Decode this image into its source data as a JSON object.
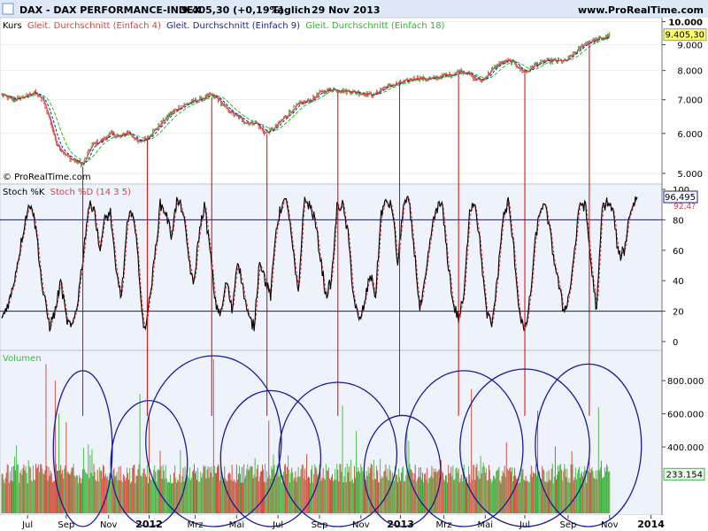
{
  "header": {
    "instrument": "DAX - DAX PERFORMANCE-INDEX",
    "last": "9.405,30 (+0,19%)",
    "period": "Täglich",
    "date": "29 Nov 2013",
    "site": "www.ProRealTime.com"
  },
  "watermark": "© ProRealTime.com",
  "colors": {
    "price": "#000000",
    "ma4": "#e03c3c",
    "ma9": "#1a1a99",
    "ma18": "#1fc01f",
    "stochK": "#000000",
    "stochD": "#e03c3c",
    "volUp": "#3cb83c",
    "volDown": "#d04030",
    "markerLine": "#dd0000",
    "ellipse": "#1a1a99",
    "panelBg": "#eef2fb",
    "pricePanelBg": "#ffffff",
    "labelHighlight": "#ffff66"
  },
  "chart_data": [
    {
      "type": "line",
      "panel": "price",
      "legend": [
        "Kurs",
        "Gleit. Durchschnitt (Einfach 4)",
        "Gleit. Durchschnitt (Einfach 9)",
        "Gleit. Durchschnitt (Einfach 18)"
      ],
      "ylim": [
        4800,
        10100
      ],
      "y_scale": "log",
      "y_ticks": [
        "10.000",
        "9.000",
        "8.000",
        "7.000",
        "6.000",
        "5.000"
      ],
      "y_tick_values": [
        10000,
        9000,
        8000,
        7000,
        6000,
        5000
      ],
      "last_value_label": "9.405,30",
      "x_index_range": [
        0,
        635
      ],
      "anchors": [
        [
          0,
          7150
        ],
        [
          12,
          7000
        ],
        [
          25,
          7100
        ],
        [
          35,
          7250
        ],
        [
          45,
          6950
        ],
        [
          52,
          6400
        ],
        [
          58,
          5800
        ],
        [
          68,
          5450
        ],
        [
          78,
          5300
        ],
        [
          88,
          5200
        ],
        [
          98,
          5700
        ],
        [
          108,
          5800
        ],
        [
          118,
          6000
        ],
        [
          128,
          5900
        ],
        [
          138,
          6050
        ],
        [
          148,
          5750
        ],
        [
          158,
          5900
        ],
        [
          170,
          6200
        ],
        [
          182,
          6550
        ],
        [
          195,
          6800
        ],
        [
          208,
          6950
        ],
        [
          218,
          7050
        ],
        [
          226,
          7150
        ],
        [
          234,
          7050
        ],
        [
          244,
          6700
        ],
        [
          254,
          6500
        ],
        [
          266,
          6300
        ],
        [
          276,
          6300
        ],
        [
          286,
          6000
        ],
        [
          296,
          6150
        ],
        [
          308,
          6500
        ],
        [
          322,
          6850
        ],
        [
          336,
          7000
        ],
        [
          346,
          7250
        ],
        [
          358,
          7350
        ],
        [
          370,
          7300
        ],
        [
          382,
          7250
        ],
        [
          394,
          7200
        ],
        [
          404,
          7150
        ],
        [
          414,
          7400
        ],
        [
          426,
          7500
        ],
        [
          438,
          7600
        ],
        [
          450,
          7750
        ],
        [
          458,
          7700
        ],
        [
          468,
          7700
        ],
        [
          478,
          7800
        ],
        [
          488,
          7850
        ],
        [
          498,
          8000
        ],
        [
          506,
          7900
        ],
        [
          514,
          7700
        ],
        [
          522,
          7650
        ],
        [
          530,
          7950
        ],
        [
          540,
          8250
        ],
        [
          548,
          8350
        ],
        [
          556,
          8300
        ],
        [
          564,
          8000
        ],
        [
          570,
          7950
        ],
        [
          578,
          8200
        ],
        [
          590,
          8350
        ],
        [
          602,
          8350
        ],
        [
          612,
          8350
        ],
        [
          618,
          8550
        ],
        [
          626,
          8800
        ],
        [
          635,
          9100
        ],
        [
          645,
          9200
        ],
        [
          655,
          9300
        ],
        [
          660,
          9405
        ]
      ]
    },
    {
      "type": "line",
      "panel": "stochastic",
      "legend": [
        "Stoch %K",
        "Stoch %D (14 3 5)"
      ],
      "ylim": [
        0,
        100
      ],
      "y_ticks": [
        "100",
        "80",
        "60",
        "40",
        "20",
        "0"
      ],
      "y_tick_values": [
        100,
        80,
        60,
        40,
        20,
        0
      ],
      "hlines": [
        80,
        20
      ],
      "last_value_label": "96,495",
      "last_value_label_d": "92,4?",
      "anchors": [
        [
          0,
          15
        ],
        [
          10,
          30
        ],
        [
          18,
          55
        ],
        [
          26,
          82
        ],
        [
          32,
          92
        ],
        [
          38,
          70
        ],
        [
          44,
          35
        ],
        [
          52,
          10
        ],
        [
          58,
          20
        ],
        [
          64,
          40
        ],
        [
          70,
          15
        ],
        [
          76,
          8
        ],
        [
          82,
          25
        ],
        [
          88,
          55
        ],
        [
          94,
          88
        ],
        [
          100,
          90
        ],
        [
          106,
          60
        ],
        [
          112,
          80
        ],
        [
          118,
          85
        ],
        [
          124,
          45
        ],
        [
          130,
          30
        ],
        [
          136,
          75
        ],
        [
          142,
          88
        ],
        [
          148,
          55
        ],
        [
          154,
          6
        ],
        [
          160,
          25
        ],
        [
          166,
          55
        ],
        [
          172,
          90
        ],
        [
          178,
          85
        ],
        [
          184,
          70
        ],
        [
          190,
          92
        ],
        [
          196,
          88
        ],
        [
          202,
          60
        ],
        [
          208,
          35
        ],
        [
          214,
          70
        ],
        [
          220,
          90
        ],
        [
          226,
          60
        ],
        [
          232,
          25
        ],
        [
          238,
          18
        ],
        [
          244,
          40
        ],
        [
          250,
          20
        ],
        [
          256,
          55
        ],
        [
          262,
          35
        ],
        [
          268,
          15
        ],
        [
          274,
          10
        ],
        [
          280,
          55
        ],
        [
          286,
          40
        ],
        [
          292,
          30
        ],
        [
          298,
          75
        ],
        [
          304,
          90
        ],
        [
          310,
          92
        ],
        [
          316,
          60
        ],
        [
          322,
          30
        ],
        [
          328,
          92
        ],
        [
          334,
          90
        ],
        [
          340,
          80
        ],
        [
          346,
          55
        ],
        [
          352,
          30
        ],
        [
          358,
          40
        ],
        [
          364,
          88
        ],
        [
          370,
          90
        ],
        [
          376,
          70
        ],
        [
          382,
          30
        ],
        [
          388,
          12
        ],
        [
          394,
          25
        ],
        [
          400,
          45
        ],
        [
          406,
          30
        ],
        [
          412,
          85
        ],
        [
          418,
          92
        ],
        [
          424,
          88
        ],
        [
          430,
          50
        ],
        [
          436,
          90
        ],
        [
          442,
          92
        ],
        [
          448,
          60
        ],
        [
          454,
          20
        ],
        [
          460,
          40
        ],
        [
          466,
          70
        ],
        [
          472,
          88
        ],
        [
          478,
          90
        ],
        [
          484,
          55
        ],
        [
          490,
          25
        ],
        [
          496,
          15
        ],
        [
          502,
          30
        ],
        [
          508,
          88
        ],
        [
          514,
          92
        ],
        [
          520,
          60
        ],
        [
          526,
          20
        ],
        [
          532,
          10
        ],
        [
          538,
          40
        ],
        [
          544,
          80
        ],
        [
          550,
          92
        ],
        [
          556,
          60
        ],
        [
          562,
          20
        ],
        [
          568,
          5
        ],
        [
          574,
          30
        ],
        [
          580,
          70
        ],
        [
          586,
          90
        ],
        [
          592,
          85
        ],
        [
          598,
          60
        ],
        [
          604,
          40
        ],
        [
          610,
          20
        ],
        [
          616,
          30
        ],
        [
          622,
          60
        ],
        [
          628,
          92
        ],
        [
          634,
          88
        ],
        [
          640,
          50
        ],
        [
          646,
          20
        ],
        [
          652,
          88
        ],
        [
          658,
          92
        ],
        [
          664,
          85
        ],
        [
          670,
          55
        ],
        [
          676,
          60
        ],
        [
          682,
          85
        ],
        [
          690,
          96
        ]
      ]
    },
    {
      "type": "bar",
      "panel": "volume",
      "legend": [
        "Volumen"
      ],
      "ylim": [
        0,
        950000
      ],
      "y_ticks": [
        "800.000",
        "600.000",
        "400.000"
      ],
      "y_tick_values": [
        800000,
        600000,
        400000
      ],
      "last_value_label": "233.154",
      "baseline_range": [
        180000,
        300000
      ],
      "spikes": [
        {
          "i": 48,
          "v": 900000
        },
        {
          "i": 58,
          "v": 800000
        },
        {
          "i": 62,
          "v": 600000
        },
        {
          "i": 70,
          "v": 550000
        },
        {
          "i": 150,
          "v": 720000
        },
        {
          "i": 160,
          "v": 600000
        },
        {
          "i": 230,
          "v": 930000
        },
        {
          "i": 290,
          "v": 560000
        },
        {
          "i": 370,
          "v": 650000
        },
        {
          "i": 440,
          "v": 520000
        },
        {
          "i": 510,
          "v": 750000
        },
        {
          "i": 582,
          "v": 620000
        },
        {
          "i": 648,
          "v": 640000
        },
        {
          "i": 670,
          "v": 470000
        }
      ]
    }
  ],
  "x_axis": {
    "labels": [
      {
        "text": "Jul",
        "i": 28
      },
      {
        "text": "Sep",
        "i": 70
      },
      {
        "text": "Nov",
        "i": 116
      },
      {
        "text": "2012",
        "i": 160,
        "bold": true
      },
      {
        "text": "Mrz",
        "i": 210
      },
      {
        "text": "Mai",
        "i": 255
      },
      {
        "text": "Jul",
        "i": 300
      },
      {
        "text": "Sep",
        "i": 345
      },
      {
        "text": "Nov",
        "i": 390
      },
      {
        "text": "2013",
        "i": 433,
        "bold": true
      },
      {
        "text": "Mrz",
        "i": 480
      },
      {
        "text": "Mai",
        "i": 525
      },
      {
        "text": "Jul",
        "i": 568
      },
      {
        "text": "Sep",
        "i": 615
      },
      {
        "text": "Nov",
        "i": 660
      },
      {
        "text": "2014",
        "i": 705,
        "bold": true
      }
    ],
    "index_range": [
      0,
      715
    ]
  },
  "annotations": {
    "marker_indices": [
      88,
      158,
      228,
      288,
      365,
      432,
      496,
      568,
      638
    ],
    "ellipses": [
      {
        "i": 88,
        "w_bars": 20,
        "top_v": 860000
      },
      {
        "i": 160,
        "w_bars": 26,
        "top_v": 680000
      },
      {
        "i": 230,
        "w_bars": 46,
        "top_v": 950000
      },
      {
        "i": 292,
        "w_bars": 34,
        "top_v": 740000
      },
      {
        "i": 365,
        "w_bars": 40,
        "top_v": 790000
      },
      {
        "i": 435,
        "w_bars": 26,
        "top_v": 590000
      },
      {
        "i": 502,
        "w_bars": 40,
        "top_v": 860000
      },
      {
        "i": 568,
        "w_bars": 44,
        "top_v": 870000
      },
      {
        "i": 637,
        "w_bars": 36,
        "top_v": 900000
      }
    ]
  }
}
